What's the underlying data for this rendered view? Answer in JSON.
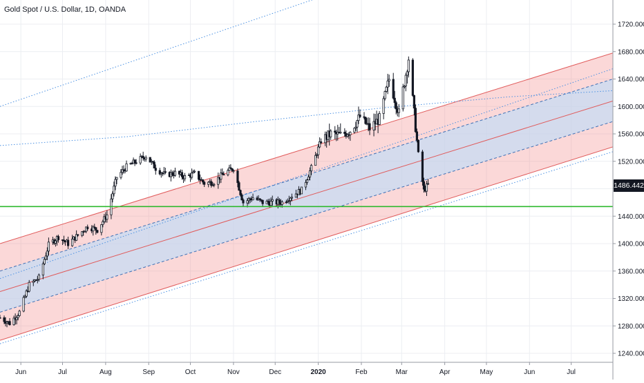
{
  "chart_data": {
    "type": "candlestick",
    "title": "Gold Spot / U.S. Dollar, 1D, OANDA",
    "x_tick_labels": [
      "Jun",
      "Jul",
      "Aug",
      "Sep",
      "Oct",
      "Nov",
      "Dec",
      "2020",
      "Feb",
      "Mar",
      "Apr",
      "May",
      "Jun",
      "Jul"
    ],
    "x_range": [
      "2019-05-17",
      "2020-07-31"
    ],
    "y_tick_labels": [
      "1240.000",
      "1280.000",
      "1320.000",
      "1360.000",
      "1400.000",
      "1440.000",
      "1480.000",
      "1520.000",
      "1560.000",
      "1600.000",
      "1640.000",
      "1680.000",
      "1720.000"
    ],
    "ylim": [
      1225,
      1747
    ],
    "y_axis_position": "right",
    "grid": true,
    "last_price_label": "1486.442",
    "horizontal_level": 1454,
    "close_path": [
      [
        "2019-05-17",
        1292
      ],
      [
        "2019-05-24",
        1284
      ],
      [
        "2019-05-31",
        1300
      ],
      [
        "2019-06-07",
        1340
      ],
      [
        "2019-06-14",
        1350
      ],
      [
        "2019-06-21",
        1398
      ],
      [
        "2019-06-28",
        1410
      ],
      [
        "2019-07-05",
        1400
      ],
      [
        "2019-07-12",
        1412
      ],
      [
        "2019-07-19",
        1425
      ],
      [
        "2019-07-26",
        1420
      ],
      [
        "2019-08-02",
        1442
      ],
      [
        "2019-08-09",
        1497
      ],
      [
        "2019-08-16",
        1512
      ],
      [
        "2019-08-23",
        1520
      ],
      [
        "2019-08-30",
        1528
      ],
      [
        "2019-09-06",
        1510
      ],
      [
        "2019-09-13",
        1500
      ],
      [
        "2019-09-20",
        1503
      ],
      [
        "2019-09-27",
        1497
      ],
      [
        "2019-10-04",
        1502
      ],
      [
        "2019-10-11",
        1488
      ],
      [
        "2019-10-18",
        1490
      ],
      [
        "2019-10-25",
        1502
      ],
      [
        "2019-11-01",
        1510
      ],
      [
        "2019-11-08",
        1460
      ],
      [
        "2019-11-15",
        1467
      ],
      [
        "2019-11-22",
        1460
      ],
      [
        "2019-11-29",
        1460
      ],
      [
        "2019-12-06",
        1460
      ],
      [
        "2019-12-13",
        1470
      ],
      [
        "2019-12-20",
        1478
      ],
      [
        "2019-12-27",
        1510
      ],
      [
        "2020-01-03",
        1550
      ],
      [
        "2020-01-10",
        1560
      ],
      [
        "2020-01-17",
        1558
      ],
      [
        "2020-01-24",
        1565
      ],
      [
        "2020-01-31",
        1585
      ],
      [
        "2020-02-07",
        1568
      ],
      [
        "2020-02-14",
        1582
      ],
      [
        "2020-02-21",
        1640
      ],
      [
        "2020-02-28",
        1590
      ],
      [
        "2020-03-06",
        1670
      ],
      [
        "2020-03-13",
        1530
      ],
      [
        "2020-03-17",
        1477
      ],
      [
        "2020-03-20",
        1486
      ]
    ],
    "regression_channel": {
      "start_date": "2019-05-17",
      "end_date": "2020-07-31",
      "center_line": [
        1330,
        1608
      ],
      "inner_band_upper": [
        1360,
        1640
      ],
      "inner_band_lower": [
        1300,
        1578
      ],
      "outer_band_upper": [
        1400,
        1678
      ],
      "outer_band_lower": [
        1259,
        1541
      ],
      "dotted_upper": [
        1349,
        1655
      ],
      "dotted_lower": [
        1254,
        1534
      ]
    },
    "extra_dotted_lines": [
      {
        "name": "steep-upper",
        "points": [
          [
            "2019-05-17",
            1600
          ],
          [
            "2020-07-31",
            1905
          ]
        ]
      },
      {
        "name": "curved-trend",
        "points": [
          [
            "2019-05-17",
            1543
          ],
          [
            "2019-08-17",
            1556
          ],
          [
            "2019-11-17",
            1578
          ],
          [
            "2020-02-17",
            1598
          ],
          [
            "2020-05-17",
            1614
          ],
          [
            "2020-07-31",
            1623
          ]
        ]
      }
    ],
    "colors": {
      "background": "#ffffff",
      "grid": "#eceef2",
      "candle": "#131722",
      "channel_line": "#e05a5a",
      "outer_fill": "rgba(244,143,143,0.35)",
      "inner_fill": "rgba(187,222,251,0.6)",
      "dotted_line": "#4a90e2",
      "horizontal_level": "#2db82d",
      "axis_text": "#131722"
    }
  }
}
